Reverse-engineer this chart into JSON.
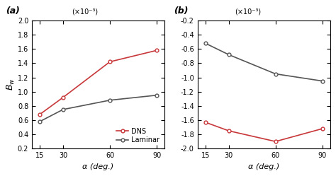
{
  "alpha": [
    15,
    30,
    60,
    90
  ],
  "panel_a": {
    "dns": [
      0.68,
      0.92,
      1.42,
      1.58
    ],
    "laminar": [
      0.58,
      0.75,
      0.88,
      0.95
    ],
    "ylim": [
      0.2,
      2.0
    ],
    "yticks": [
      0.2,
      0.4,
      0.6,
      0.8,
      1.0,
      1.2,
      1.4,
      1.6,
      1.8,
      2.0
    ],
    "label": "(a)",
    "ylabel": "$B_w$",
    "exponent_label": "×10⁻³"
  },
  "panel_b": {
    "dns": [
      -1.63,
      -1.75,
      -1.9,
      -1.72
    ],
    "laminar": [
      -0.52,
      -0.68,
      -0.95,
      -1.05
    ],
    "ylim": [
      -2.0,
      -0.2
    ],
    "yticks": [
      -2.0,
      -1.8,
      -1.6,
      -1.4,
      -1.2,
      -1.0,
      -0.8,
      -0.6,
      -0.4,
      -0.2
    ],
    "label": "(b)",
    "exponent_label": "×10⁻³"
  },
  "dns_color": "#c8373a",
  "laminar_color": "#555555",
  "background_color": "#ffffff",
  "xticks": [
    15,
    30,
    60,
    90
  ],
  "xlabel": "α (deg.)",
  "legend_dns": "DNS",
  "legend_laminar": "Laminar"
}
